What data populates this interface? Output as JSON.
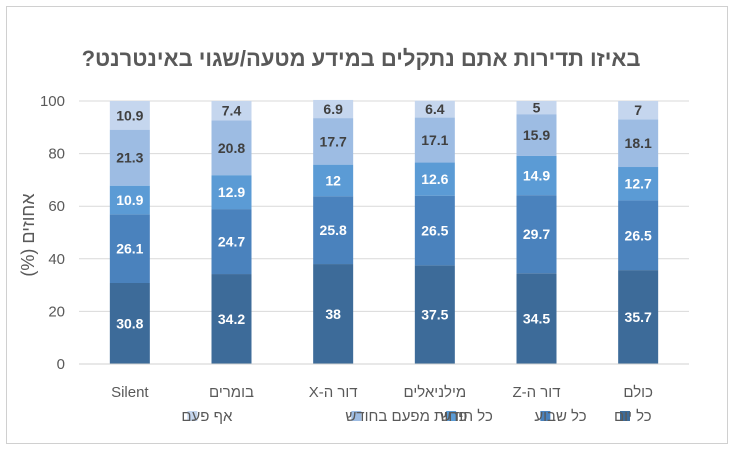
{
  "chart_data": {
    "type": "bar",
    "stacked": true,
    "title": "באיזו תדירות אתם נתקלים במידע מטעה/שגוי באינטרנט?",
    "xlabel": "",
    "ylabel": "אחוזים (%)",
    "ylim": [
      0,
      100
    ],
    "yticks": [
      "0",
      "20",
      "40",
      "60",
      "80",
      "100"
    ],
    "grid": true,
    "legend_position": "bottom",
    "categories": [
      "כולם",
      "דור ה-Z",
      "מילניאלים",
      "דור ה-X",
      "בומרים",
      "Silent"
    ],
    "series": [
      {
        "name": "כל יום",
        "color": "#3d6b99",
        "label_color": "#ffffff",
        "values": [
          35.7,
          34.5,
          37.5,
          38,
          34.2,
          30.8
        ]
      },
      {
        "name": "כל שבוע",
        "color": "#4a82bd",
        "label_color": "#ffffff",
        "values": [
          26.5,
          29.7,
          26.5,
          25.8,
          24.7,
          26.1
        ]
      },
      {
        "name": "כל חודש",
        "color": "#5b9bd5",
        "label_color": "#ffffff",
        "values": [
          12.7,
          14.9,
          12.6,
          12,
          12.9,
          10.9
        ]
      },
      {
        "name": "פחות מפעם בחודש",
        "color": "#9dbce3",
        "label_color": "#404040",
        "values": [
          18.1,
          15.9,
          17.1,
          17.7,
          20.8,
          21.3
        ]
      },
      {
        "name": "אף פעם",
        "color": "#c5d6ee",
        "label_color": "#404040",
        "values": [
          7,
          5,
          6.4,
          6.9,
          7.4,
          10.9
        ]
      }
    ]
  }
}
